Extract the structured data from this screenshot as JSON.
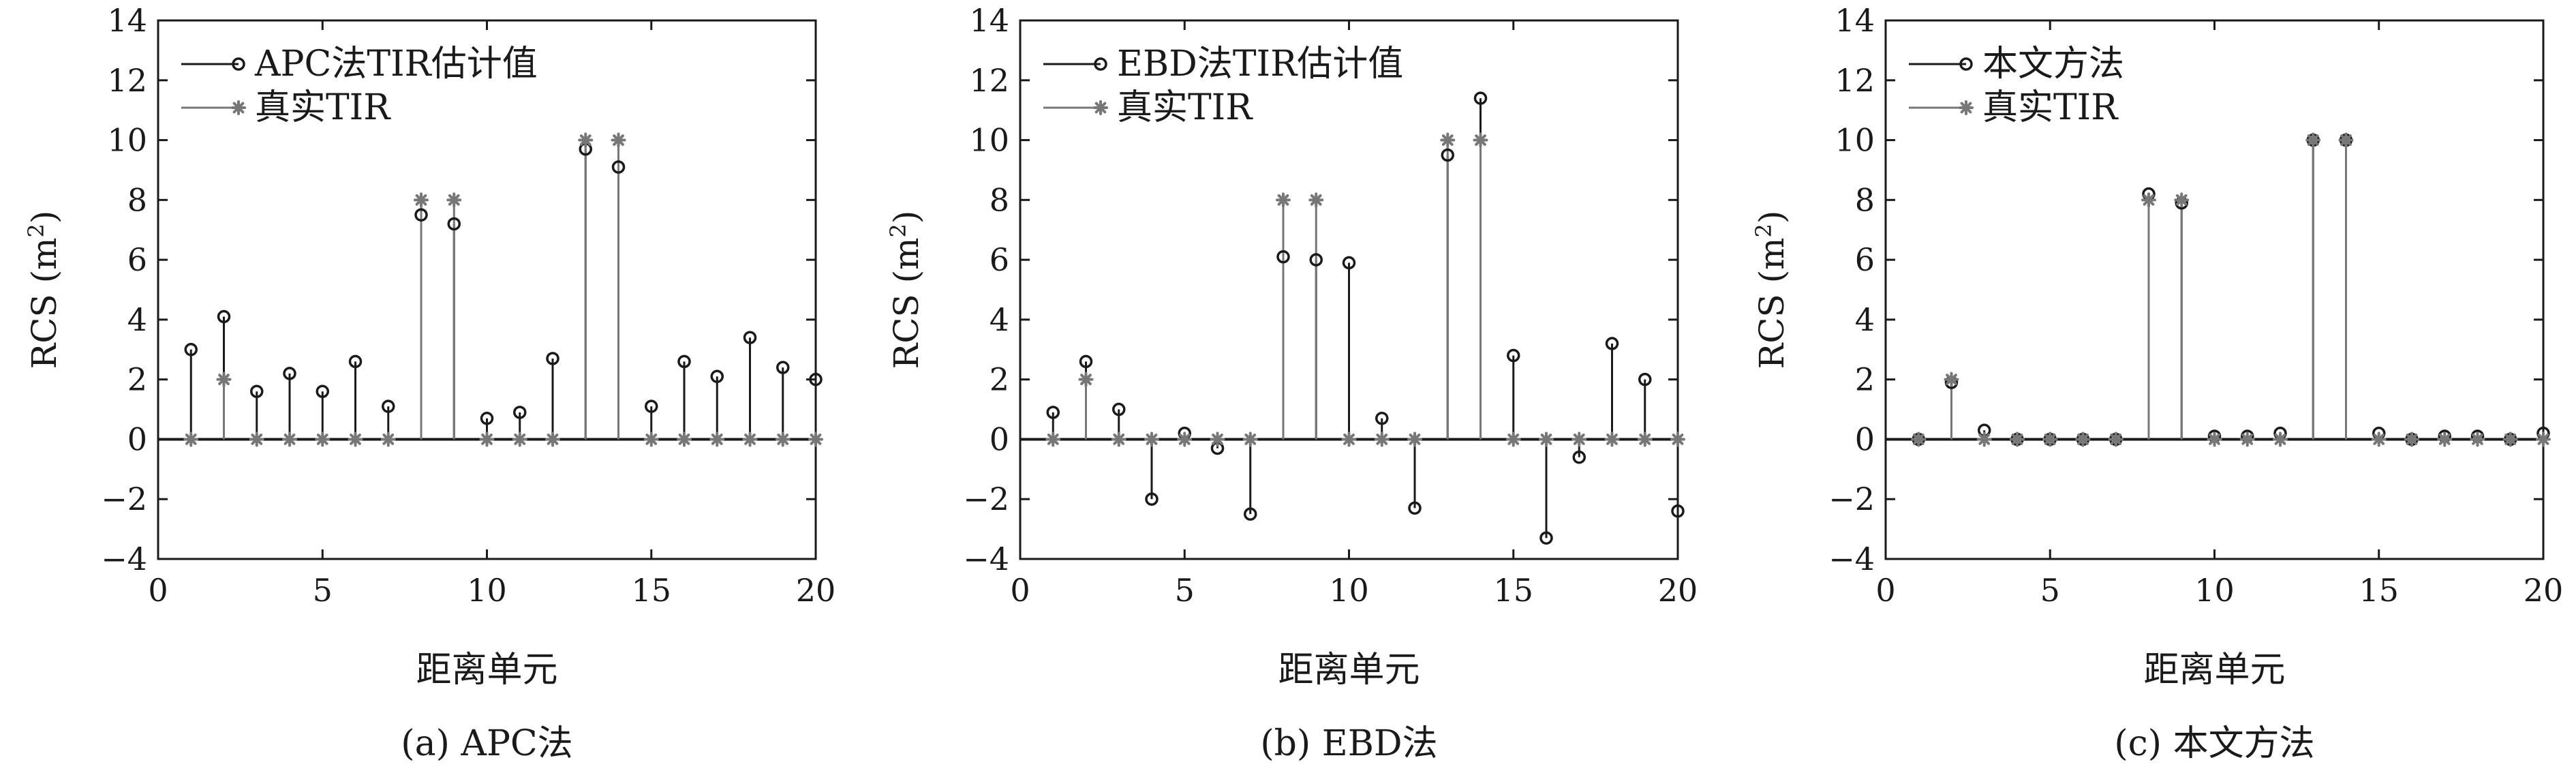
{
  "chart_data": [
    {
      "type": "stem",
      "caption": "(a) APC法",
      "xlabel": "距离单元",
      "ylabel_main": "RCS (m",
      "ylabel_sup": "2",
      "ylabel_close": ")",
      "xlim": [
        0,
        20
      ],
      "ylim": [
        -4,
        14
      ],
      "xticks": [
        0,
        5,
        10,
        15,
        20
      ],
      "yticks": [
        -4,
        -2,
        0,
        2,
        4,
        6,
        8,
        10,
        12,
        14
      ],
      "x": [
        1,
        2,
        3,
        4,
        5,
        6,
        7,
        8,
        9,
        10,
        11,
        12,
        13,
        14,
        15,
        16,
        17,
        18,
        19,
        20
      ],
      "legend_position": "top-left",
      "series": [
        {
          "name": "APC法TIR估计值",
          "marker": "circle",
          "color": "#1a1a1a",
          "values": [
            3.0,
            4.1,
            1.6,
            2.2,
            1.6,
            2.6,
            1.1,
            7.5,
            7.2,
            0.7,
            0.9,
            2.7,
            9.7,
            9.1,
            1.1,
            2.6,
            2.1,
            3.4,
            2.4,
            2.0
          ]
        },
        {
          "name": "真实TIR",
          "marker": "star",
          "color": "#777777",
          "values": [
            0,
            2,
            0,
            0,
            0,
            0,
            0,
            8,
            8,
            0,
            0,
            0,
            10,
            10,
            0,
            0,
            0,
            0,
            0,
            0
          ]
        }
      ]
    },
    {
      "type": "stem",
      "caption": "(b) EBD法",
      "xlabel": "距离单元",
      "ylabel_main": "RCS (m",
      "ylabel_sup": "2",
      "ylabel_close": ")",
      "xlim": [
        0,
        20
      ],
      "ylim": [
        -4,
        14
      ],
      "xticks": [
        0,
        5,
        10,
        15,
        20
      ],
      "yticks": [
        -4,
        -2,
        0,
        2,
        4,
        6,
        8,
        10,
        12,
        14
      ],
      "x": [
        1,
        2,
        3,
        4,
        5,
        6,
        7,
        8,
        9,
        10,
        11,
        12,
        13,
        14,
        15,
        16,
        17,
        18,
        19,
        20
      ],
      "legend_position": "top-left",
      "series": [
        {
          "name": "EBD法TIR估计值",
          "marker": "circle",
          "color": "#1a1a1a",
          "values": [
            0.9,
            2.6,
            1.0,
            -2.0,
            0.2,
            -0.3,
            -2.5,
            6.1,
            6.0,
            5.9,
            0.7,
            -2.3,
            9.5,
            11.4,
            2.8,
            -3.3,
            -0.6,
            3.2,
            2.0,
            -2.4
          ]
        },
        {
          "name": "真实TIR",
          "marker": "star",
          "color": "#777777",
          "values": [
            0,
            2,
            0,
            0,
            0,
            0,
            0,
            8,
            8,
            0,
            0,
            0,
            10,
            10,
            0,
            0,
            0,
            0,
            0,
            0
          ]
        }
      ]
    },
    {
      "type": "stem",
      "caption": "(c) 本文方法",
      "xlabel": "距离单元",
      "ylabel_main": "RCS (m",
      "ylabel_sup": "2",
      "ylabel_close": ")",
      "xlim": [
        0,
        20
      ],
      "ylim": [
        -4,
        14
      ],
      "xticks": [
        0,
        5,
        10,
        15,
        20
      ],
      "yticks": [
        -4,
        -2,
        0,
        2,
        4,
        6,
        8,
        10,
        12,
        14
      ],
      "x": [
        1,
        2,
        3,
        4,
        5,
        6,
        7,
        8,
        9,
        10,
        11,
        12,
        13,
        14,
        15,
        16,
        17,
        18,
        19,
        20
      ],
      "legend_position": "top-left",
      "series": [
        {
          "name": "本文方法",
          "marker": "circle",
          "color": "#1a1a1a",
          "values": [
            0.0,
            1.9,
            0.3,
            0.0,
            0.0,
            0.0,
            0.0,
            8.2,
            7.9,
            0.1,
            0.1,
            0.2,
            10.0,
            10.0,
            0.2,
            0.0,
            0.1,
            0.1,
            0.0,
            0.2
          ]
        },
        {
          "name": "真实TIR",
          "marker": "star",
          "color": "#777777",
          "values": [
            0,
            2,
            0,
            0,
            0,
            0,
            0,
            8,
            8,
            0,
            0,
            0,
            10,
            10,
            0,
            0,
            0,
            0,
            0,
            0
          ]
        }
      ]
    }
  ]
}
